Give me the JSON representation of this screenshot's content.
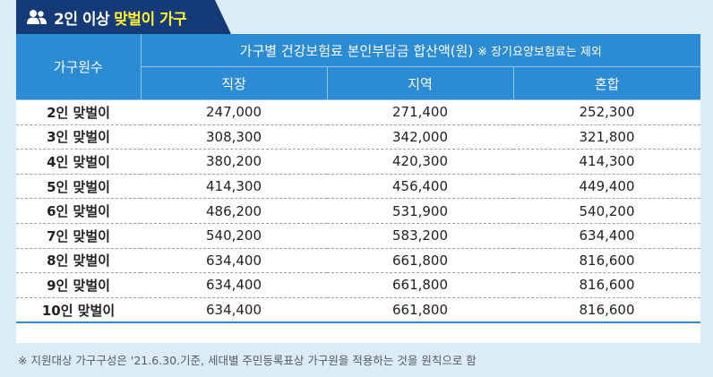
{
  "title": {
    "icon": "people-icon",
    "main": "2인 이상",
    "highlight": "맞벌이 가구"
  },
  "table": {
    "row_header": "가구원수",
    "group_header": "가구별 건강보험료 본인부담금 합산액(원)",
    "group_note": "※ 장기요양보험료는 제외",
    "columns": [
      "직장",
      "지역",
      "혼합"
    ],
    "rows": [
      {
        "label": "2인 맞벌이",
        "values": [
          "247,000",
          "271,400",
          "252,300"
        ]
      },
      {
        "label": "3인 맞벌이",
        "values": [
          "308,300",
          "342,000",
          "321,800"
        ]
      },
      {
        "label": "4인 맞벌이",
        "values": [
          "380,200",
          "420,300",
          "414,300"
        ]
      },
      {
        "label": "5인 맞벌이",
        "values": [
          "414,300",
          "456,400",
          "449,400"
        ]
      },
      {
        "label": "6인 맞벌이",
        "values": [
          "486,200",
          "531,900",
          "540,200"
        ]
      },
      {
        "label": "7인 맞벌이",
        "values": [
          "540,200",
          "583,200",
          "634,400"
        ]
      },
      {
        "label": "8인 맞벌이",
        "values": [
          "634,400",
          "661,800",
          "816,600"
        ]
      },
      {
        "label": "9인 맞벌이",
        "values": [
          "634,400",
          "661,800",
          "816,600"
        ]
      },
      {
        "label": "10인 맞벌이",
        "values": [
          "634,400",
          "661,800",
          "816,600"
        ]
      }
    ]
  },
  "footnote": "※ 지원대상 가구구성은 '21.6.30.기준, 세대별 주민등록표상 가구원을 적용하는 것을 원칙으로 함",
  "colors": {
    "title_bg": "#143a78",
    "highlight": "#ffee32",
    "header_bg": "#2b8bd3",
    "page_bg": "#dcecf7"
  }
}
